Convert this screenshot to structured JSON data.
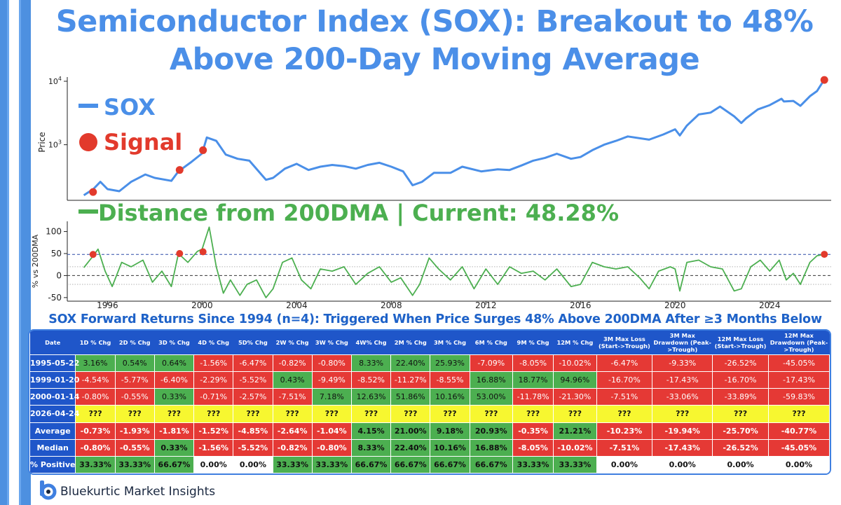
{
  "title_line1": "Semiconductor Index (SOX): Breakout to 48%",
  "title_line2": "Above 200-Day Moving Average",
  "chart_data": [
    {
      "type": "line",
      "ylabel": "Price",
      "yscale": "log",
      "ylim": [
        140,
        10000
      ],
      "yticks": [
        "10^3",
        "10^4"
      ],
      "legend": [
        {
          "label": "SOX",
          "color": "#4a8fe8",
          "marker": "line"
        },
        {
          "label": "Signal",
          "color": "#e23a2c",
          "marker": "dot"
        }
      ],
      "series": [
        {
          "name": "SOX",
          "color": "#4a8fe8",
          "x": [
            1995.0,
            1995.4,
            1995.7,
            1996.0,
            1996.5,
            1997.0,
            1997.6,
            1998.0,
            1998.7,
            1999.0,
            1999.5,
            2000.0,
            2000.2,
            2000.6,
            2001.0,
            2001.5,
            2002.0,
            2002.7,
            2003.0,
            2003.5,
            2004.0,
            2004.5,
            2005.0,
            2005.5,
            2006.0,
            2006.5,
            2007.0,
            2007.5,
            2008.0,
            2008.5,
            2008.9,
            2009.3,
            2009.8,
            2010.5,
            2011.0,
            2011.8,
            2012.5,
            2013.0,
            2013.5,
            2014.0,
            2014.5,
            2015.0,
            2015.6,
            2016.0,
            2016.5,
            2017.0,
            2017.5,
            2018.0,
            2018.9,
            2019.5,
            2020.0,
            2020.2,
            2020.5,
            2021.0,
            2021.5,
            2021.9,
            2022.5,
            2022.8,
            2023.0,
            2023.5,
            2024.0,
            2024.5,
            2024.6,
            2025.0,
            2025.3,
            2025.7,
            2026.0,
            2026.3
          ],
          "values": [
            160,
            200,
            260,
            200,
            185,
            260,
            340,
            300,
            270,
            380,
            520,
            730,
            1300,
            1150,
            700,
            600,
            560,
            280,
            300,
            420,
            500,
            400,
            450,
            480,
            460,
            420,
            480,
            520,
            450,
            380,
            230,
            260,
            360,
            360,
            450,
            380,
            410,
            400,
            470,
            560,
            620,
            720,
            600,
            640,
            820,
            1000,
            1150,
            1350,
            1200,
            1450,
            1750,
            1400,
            2000,
            3000,
            3200,
            4000,
            2800,
            2200,
            2600,
            3600,
            4200,
            5300,
            4800,
            4900,
            4100,
            5800,
            7000,
            10500
          ]
        }
      ],
      "signals": [
        {
          "date": "1995-05-22",
          "x": 1995.39,
          "y": 180
        },
        {
          "date": "1999-01-20",
          "x": 1999.05,
          "y": 400
        },
        {
          "date": "2000-01-14",
          "x": 2000.04,
          "y": 820
        },
        {
          "date": "2026-04-24",
          "x": 2026.31,
          "y": 10500
        }
      ]
    },
    {
      "type": "line",
      "ylabel": "% vs 200DMA",
      "ylim": [
        -55,
        120
      ],
      "yticks": [
        -50,
        0,
        50,
        100
      ],
      "xticks": [
        1996,
        2000,
        2004,
        2008,
        2012,
        2016,
        2020,
        2024
      ],
      "hlines": [
        {
          "y": 48,
          "style": "dashed",
          "color": "#2b4aa8"
        },
        {
          "y": 20,
          "style": "dotted",
          "color": "#999999"
        },
        {
          "y": 0,
          "style": "dashed",
          "color": "#333333"
        },
        {
          "y": -20,
          "style": "dotted",
          "color": "#999999"
        }
      ],
      "legend": [
        {
          "label": "Distance from 200DMA | Current: 48.28%",
          "color": "#4caf50",
          "marker": "line"
        }
      ],
      "series": [
        {
          "name": "Distance from 200DMA",
          "color": "#4caf50",
          "x": [
            1995.0,
            1995.4,
            1995.6,
            1995.9,
            1996.2,
            1996.6,
            1997.0,
            1997.5,
            1997.9,
            1998.3,
            1998.7,
            1999.0,
            1999.4,
            1999.8,
            2000.0,
            2000.3,
            2000.6,
            2000.9,
            2001.2,
            2001.6,
            2001.9,
            2002.3,
            2002.7,
            2003.0,
            2003.4,
            2003.8,
            2004.2,
            2004.6,
            2005.0,
            2005.5,
            2006.0,
            2006.5,
            2007.0,
            2007.5,
            2008.0,
            2008.4,
            2008.9,
            2009.2,
            2009.6,
            2010.0,
            2010.5,
            2011.0,
            2011.5,
            2012.0,
            2012.5,
            2013.0,
            2013.5,
            2014.0,
            2014.5,
            2015.0,
            2015.6,
            2016.0,
            2016.5,
            2017.0,
            2017.5,
            2018.0,
            2018.5,
            2018.9,
            2019.3,
            2019.8,
            2020.0,
            2020.2,
            2020.5,
            2021.0,
            2021.5,
            2022.0,
            2022.5,
            2022.8,
            2023.2,
            2023.6,
            2024.0,
            2024.4,
            2024.7,
            2025.0,
            2025.3,
            2025.7,
            2026.0,
            2026.31
          ],
          "values": [
            18,
            45,
            60,
            10,
            -25,
            30,
            20,
            35,
            -15,
            10,
            -25,
            50,
            30,
            55,
            60,
            110,
            20,
            -40,
            -10,
            -45,
            -20,
            -10,
            -50,
            -30,
            30,
            40,
            -10,
            -30,
            15,
            10,
            20,
            -20,
            5,
            20,
            -15,
            -5,
            -45,
            -20,
            40,
            15,
            -10,
            20,
            -30,
            15,
            -20,
            20,
            5,
            10,
            -10,
            15,
            -25,
            -20,
            30,
            20,
            15,
            20,
            -5,
            -30,
            10,
            20,
            15,
            -35,
            30,
            35,
            20,
            15,
            -35,
            -30,
            20,
            35,
            10,
            35,
            -10,
            5,
            -20,
            30,
            45,
            48.28
          ]
        }
      ],
      "signals": [
        {
          "date": "1995-05-22",
          "x": 1995.39,
          "y": 48
        },
        {
          "date": "1999-01-20",
          "x": 1999.05,
          "y": 50
        },
        {
          "date": "2000-01-14",
          "x": 2000.04,
          "y": 54
        },
        {
          "date": "2026-04-24",
          "x": 2026.31,
          "y": 48.28
        }
      ]
    },
    {
      "type": "table",
      "title": "SOX Forward Returns Since 1994 (n=4): Triggered When Price Surges 48% Above 200DMA After ≥3 Months Below",
      "columns": [
        "Date",
        "1D % Chg",
        "2D % Chg",
        "3D % Chg",
        "4D % Chg",
        "5D% Chg",
        "2W % Chg",
        "3W % Chg",
        "4W% Chg",
        "2M % Chg",
        "3M % Chg",
        "6M % Chg",
        "9M % Chg",
        "12M % Chg",
        "3M Max Loss (Start->Trough)",
        "3M Max Drawdown (Peak->Trough)",
        "12M Max Loss (Start->Trough)",
        "12M Max Drawdown (Peak->Trough)"
      ],
      "rows": [
        {
          "label": "1995-05-22",
          "cells": [
            {
              "v": "3.16%",
              "c": "g"
            },
            {
              "v": "0.54%",
              "c": "g"
            },
            {
              "v": "0.64%",
              "c": "g"
            },
            {
              "v": "-1.56%",
              "c": "r"
            },
            {
              "v": "-6.47%",
              "c": "r"
            },
            {
              "v": "-0.82%",
              "c": "r"
            },
            {
              "v": "-0.80%",
              "c": "r"
            },
            {
              "v": "8.33%",
              "c": "g"
            },
            {
              "v": "22.40%",
              "c": "g"
            },
            {
              "v": "25.93%",
              "c": "g"
            },
            {
              "v": "-7.09%",
              "c": "r"
            },
            {
              "v": "-8.05%",
              "c": "r"
            },
            {
              "v": "-10.02%",
              "c": "r"
            },
            {
              "v": "-6.47%",
              "c": "r"
            },
            {
              "v": "-9.33%",
              "c": "r"
            },
            {
              "v": "-26.52%",
              "c": "r"
            },
            {
              "v": "-45.05%",
              "c": "r"
            }
          ]
        },
        {
          "label": "1999-01-20",
          "cells": [
            {
              "v": "-4.54%",
              "c": "r"
            },
            {
              "v": "-5.77%",
              "c": "r"
            },
            {
              "v": "-6.40%",
              "c": "r"
            },
            {
              "v": "-2.29%",
              "c": "r"
            },
            {
              "v": "-5.52%",
              "c": "r"
            },
            {
              "v": "0.43%",
              "c": "g"
            },
            {
              "v": "-9.49%",
              "c": "r"
            },
            {
              "v": "-8.52%",
              "c": "r"
            },
            {
              "v": "-11.27%",
              "c": "r"
            },
            {
              "v": "-8.55%",
              "c": "r"
            },
            {
              "v": "16.88%",
              "c": "g"
            },
            {
              "v": "18.77%",
              "c": "g"
            },
            {
              "v": "94.96%",
              "c": "g"
            },
            {
              "v": "-16.70%",
              "c": "r"
            },
            {
              "v": "-17.43%",
              "c": "r"
            },
            {
              "v": "-16.70%",
              "c": "r"
            },
            {
              "v": "-17.43%",
              "c": "r"
            }
          ]
        },
        {
          "label": "2000-01-14",
          "cells": [
            {
              "v": "-0.80%",
              "c": "r"
            },
            {
              "v": "-0.55%",
              "c": "r"
            },
            {
              "v": "0.33%",
              "c": "g"
            },
            {
              "v": "-0.71%",
              "c": "r"
            },
            {
              "v": "-2.57%",
              "c": "r"
            },
            {
              "v": "-7.51%",
              "c": "r"
            },
            {
              "v": "7.18%",
              "c": "g"
            },
            {
              "v": "12.63%",
              "c": "g"
            },
            {
              "v": "51.86%",
              "c": "g"
            },
            {
              "v": "10.16%",
              "c": "g"
            },
            {
              "v": "53.00%",
              "c": "g"
            },
            {
              "v": "-11.78%",
              "c": "r"
            },
            {
              "v": "-21.30%",
              "c": "r"
            },
            {
              "v": "-7.51%",
              "c": "r"
            },
            {
              "v": "-33.06%",
              "c": "r"
            },
            {
              "v": "-33.89%",
              "c": "r"
            },
            {
              "v": "-59.83%",
              "c": "r"
            }
          ]
        },
        {
          "label": "2026-04-24",
          "cells": [
            {
              "v": "???",
              "c": "y"
            },
            {
              "v": "???",
              "c": "y"
            },
            {
              "v": "???",
              "c": "y"
            },
            {
              "v": "???",
              "c": "y"
            },
            {
              "v": "???",
              "c": "y"
            },
            {
              "v": "???",
              "c": "y"
            },
            {
              "v": "???",
              "c": "y"
            },
            {
              "v": "???",
              "c": "y"
            },
            {
              "v": "???",
              "c": "y"
            },
            {
              "v": "???",
              "c": "y"
            },
            {
              "v": "???",
              "c": "y"
            },
            {
              "v": "???",
              "c": "y"
            },
            {
              "v": "???",
              "c": "y"
            },
            {
              "v": "???",
              "c": "y"
            },
            {
              "v": "???",
              "c": "y"
            },
            {
              "v": "???",
              "c": "y"
            },
            {
              "v": "???",
              "c": "y"
            }
          ]
        },
        {
          "label": "Average",
          "summary": true,
          "cells": [
            {
              "v": "-0.73%",
              "c": "r"
            },
            {
              "v": "-1.93%",
              "c": "r"
            },
            {
              "v": "-1.81%",
              "c": "r"
            },
            {
              "v": "-1.52%",
              "c": "r"
            },
            {
              "v": "-4.85%",
              "c": "r"
            },
            {
              "v": "-2.64%",
              "c": "r"
            },
            {
              "v": "-1.04%",
              "c": "r"
            },
            {
              "v": "4.15%",
              "c": "g"
            },
            {
              "v": "21.00%",
              "c": "g"
            },
            {
              "v": "9.18%",
              "c": "g"
            },
            {
              "v": "20.93%",
              "c": "g"
            },
            {
              "v": "-0.35%",
              "c": "r"
            },
            {
              "v": "21.21%",
              "c": "g"
            },
            {
              "v": "-10.23%",
              "c": "r"
            },
            {
              "v": "-19.94%",
              "c": "r"
            },
            {
              "v": "-25.70%",
              "c": "r"
            },
            {
              "v": "-40.77%",
              "c": "r"
            }
          ]
        },
        {
          "label": "Median",
          "summary": true,
          "cells": [
            {
              "v": "-0.80%",
              "c": "r"
            },
            {
              "v": "-0.55%",
              "c": "r"
            },
            {
              "v": "0.33%",
              "c": "g"
            },
            {
              "v": "-1.56%",
              "c": "r"
            },
            {
              "v": "-5.52%",
              "c": "r"
            },
            {
              "v": "-0.82%",
              "c": "r"
            },
            {
              "v": "-0.80%",
              "c": "r"
            },
            {
              "v": "8.33%",
              "c": "g"
            },
            {
              "v": "22.40%",
              "c": "g"
            },
            {
              "v": "10.16%",
              "c": "g"
            },
            {
              "v": "16.88%",
              "c": "g"
            },
            {
              "v": "-8.05%",
              "c": "r"
            },
            {
              "v": "-10.02%",
              "c": "r"
            },
            {
              "v": "-7.51%",
              "c": "r"
            },
            {
              "v": "-17.43%",
              "c": "r"
            },
            {
              "v": "-26.52%",
              "c": "r"
            },
            {
              "v": "-45.05%",
              "c": "r"
            }
          ]
        },
        {
          "label": "% Positive",
          "summary": true,
          "cells": [
            {
              "v": "33.33%",
              "c": "g"
            },
            {
              "v": "33.33%",
              "c": "g"
            },
            {
              "v": "66.67%",
              "c": "g"
            },
            {
              "v": "0.00%",
              "c": "w"
            },
            {
              "v": "0.00%",
              "c": "w"
            },
            {
              "v": "33.33%",
              "c": "g"
            },
            {
              "v": "33.33%",
              "c": "g"
            },
            {
              "v": "66.67%",
              "c": "g"
            },
            {
              "v": "66.67%",
              "c": "g"
            },
            {
              "v": "66.67%",
              "c": "g"
            },
            {
              "v": "66.67%",
              "c": "g"
            },
            {
              "v": "33.33%",
              "c": "g"
            },
            {
              "v": "33.33%",
              "c": "g"
            },
            {
              "v": "0.00%",
              "c": "w"
            },
            {
              "v": "0.00%",
              "c": "w"
            },
            {
              "v": "0.00%",
              "c": "w"
            },
            {
              "v": "0.00%",
              "c": "w"
            }
          ]
        }
      ]
    }
  ],
  "footer": {
    "brand": "Bluekurtic Market Insights",
    "logo_icon": "bluekurtic-logo-icon"
  }
}
